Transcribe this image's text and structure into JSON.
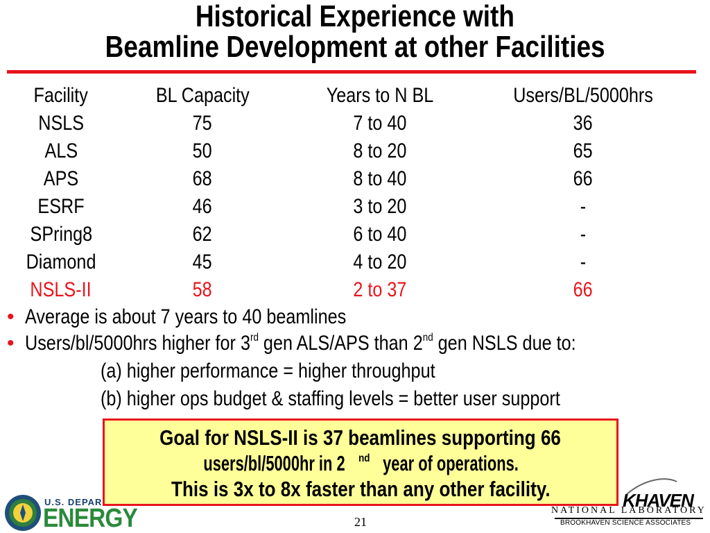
{
  "title": {
    "line1": "Historical Experience with",
    "line2": "Beamline Development at other Facilities"
  },
  "table": {
    "headers": [
      "Facility",
      "BL Capacity",
      "Years to N BL",
      "Users/BL/5000hrs"
    ],
    "rows": [
      [
        "NSLS",
        "75",
        "7 to 40",
        "36"
      ],
      [
        "ALS",
        "50",
        "8 to 20",
        "65"
      ],
      [
        "APS",
        "68",
        "8 to 40",
        "66"
      ],
      [
        "ESRF",
        "46",
        "3 to 20",
        "-"
      ],
      [
        "SPring8",
        "62",
        "6 to 40",
        "-"
      ],
      [
        "Diamond",
        "45",
        "4 to 20",
        "-"
      ],
      [
        "NSLS-II",
        "58",
        "2 to 37",
        "66"
      ]
    ]
  },
  "bullets": {
    "b1": "Average is about 7 years to 40 beamlines",
    "b2": {
      "part1": "Users/bl/5000hrs higher for 3",
      "sup1": "rd",
      "part2": " gen ALS/APS than 2",
      "sup2": "nd",
      "part3": " gen NSLS due to:"
    },
    "sub_a": "(a) higher performance = higher throughput",
    "sub_b": "(b) higher ops budget & staffing levels = better user support"
  },
  "goal": {
    "line1": "Goal for NSLS-II is 37 beamlines supporting 66",
    "line2_part1": "users/bl/5000hr in 2",
    "line2_sup": "nd",
    "line2_part2": " year of operations.",
    "line3": "This is 3x to 8x faster than any other facility."
  },
  "footer": {
    "doe_us": "U.S. DEPARTMENT OF",
    "doe_energy": "ENERGY",
    "page_number": "21",
    "bnl_word": "KHAVEN",
    "bnl_national": "NATIONAL LABORATORY",
    "bnl_assoc": "BROOKHAVEN SCIENCE ASSOCIATES"
  },
  "colors": {
    "accent_red": "#e8141c",
    "goal_fill": "#ffff99",
    "doe_green": "#2a8a3a",
    "doe_blue": "#173f6b"
  },
  "icons": {
    "doe_seal": "doe-seal-icon",
    "bnl_swoosh": "bnl-swoosh-icon"
  }
}
